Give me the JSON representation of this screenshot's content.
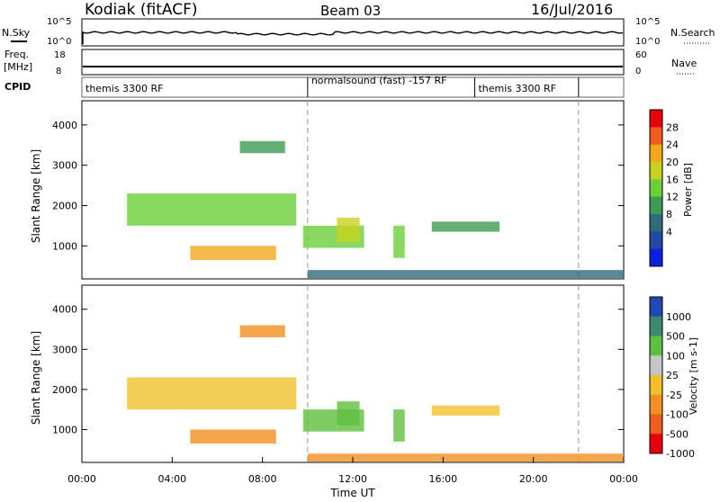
{
  "header": {
    "station": "Kodiak (fitACF)",
    "beam": "Beam 03",
    "date": "16/Jul/2016"
  },
  "top_panels": {
    "nsky_label": "N.Sky",
    "nsky_ticks": [
      "10^5",
      "10^0"
    ],
    "nsearch_label": "N.Search",
    "nsearch_ticks": [
      "10^5",
      "10^0"
    ],
    "freq_label": "Freq.",
    "freq_unit": "[MHz]",
    "freq_ticks": [
      "18",
      "8"
    ],
    "nave_label": "Nave",
    "nave_ticks": [
      "60",
      "0"
    ],
    "cpid_label": "CPID",
    "cpid_segments": [
      {
        "start_hour": 0,
        "end_hour": 10,
        "label": "themis 3300 RF"
      },
      {
        "start_hour": 10,
        "end_hour": 17.4,
        "label": "normalsound (fast) -157 RF"
      },
      {
        "start_hour": 17.4,
        "end_hour": 22,
        "label": "themis 3300 RF"
      }
    ]
  },
  "axes": {
    "ylabel": "Slant Range [km]",
    "xlabel": "Time UT",
    "y_ticks": [
      "4000",
      "3000",
      "2000",
      "1000"
    ],
    "x_ticks": [
      "00:00",
      "04:00",
      "08:00",
      "12:00",
      "16:00",
      "20:00",
      "00:00"
    ]
  },
  "power_colorbar": {
    "label": "Power [dB]",
    "ticks": [
      "28",
      "24",
      "20",
      "16",
      "12",
      "8",
      "4"
    ],
    "colors": [
      "#e8000b",
      "#f05a1a",
      "#f3a81b",
      "#c9d11f",
      "#6ccf3a",
      "#3e9b55",
      "#2f6c7a",
      "#254aa5",
      "#0d1fe0"
    ]
  },
  "velocity_colorbar": {
    "label": "Velocity [m s-1]",
    "ticks": [
      "1000",
      "500",
      "100",
      "25",
      "-25",
      "-100",
      "-500",
      "-1000"
    ],
    "colors": [
      "#2347b3",
      "#3d8a6e",
      "#5fbf3f",
      "#c6c6c6",
      "#f1c02c",
      "#f29021",
      "#ee5f1e",
      "#e8000b"
    ]
  },
  "chart_data": [
    {
      "type": "heatmap",
      "title": "Power",
      "xlabel": "Time UT",
      "ylabel": "Slant Range [km]",
      "xlim": [
        0,
        24
      ],
      "ylim": [
        180,
        4600
      ],
      "regions": [
        {
          "t0": 2.0,
          "t1": 9.5,
          "r0": 1500,
          "r1": 2300,
          "value_db": 13
        },
        {
          "t0": 4.8,
          "t1": 8.6,
          "r0": 650,
          "r1": 1000,
          "value_db": 20
        },
        {
          "t0": 9.8,
          "t1": 12.5,
          "r0": 950,
          "r1": 1500,
          "value_db": 11
        },
        {
          "t0": 11.3,
          "t1": 12.3,
          "r0": 1100,
          "r1": 1700,
          "value_db": 16
        },
        {
          "t0": 13.8,
          "t1": 14.3,
          "r0": 700,
          "r1": 1500,
          "value_db": 14
        },
        {
          "t0": 15.5,
          "t1": 18.5,
          "r0": 1350,
          "r1": 1600,
          "value_db": 8
        },
        {
          "t0": 7.0,
          "t1": 9.0,
          "r0": 3300,
          "r1": 3600,
          "value_db": 10
        },
        {
          "t0": 10.0,
          "t1": 24.0,
          "r0": 200,
          "r1": 400,
          "value_db": 6
        }
      ]
    },
    {
      "type": "heatmap",
      "title": "Velocity",
      "xlabel": "Time UT",
      "ylabel": "Slant Range [km]",
      "xlim": [
        0,
        24
      ],
      "ylim": [
        180,
        4600
      ],
      "regions": [
        {
          "t0": 2.0,
          "t1": 9.5,
          "r0": 1500,
          "r1": 2300,
          "value_ms": 0
        },
        {
          "t0": 4.8,
          "t1": 8.6,
          "r0": 650,
          "r1": 1000,
          "value_ms": -60
        },
        {
          "t0": 9.8,
          "t1": 12.5,
          "r0": 950,
          "r1": 1500,
          "value_ms": 120
        },
        {
          "t0": 11.3,
          "t1": 12.3,
          "r0": 1100,
          "r1": 1700,
          "value_ms": 300
        },
        {
          "t0": 13.8,
          "t1": 14.3,
          "r0": 700,
          "r1": 1500,
          "value_ms": 150
        },
        {
          "t0": 15.5,
          "t1": 18.5,
          "r0": 1350,
          "r1": 1600,
          "value_ms": 0
        },
        {
          "t0": 7.0,
          "t1": 9.0,
          "r0": 3300,
          "r1": 3600,
          "value_ms": -60
        },
        {
          "t0": 10.0,
          "t1": 24.0,
          "r0": 200,
          "r1": 400,
          "value_ms": -40
        }
      ]
    }
  ]
}
